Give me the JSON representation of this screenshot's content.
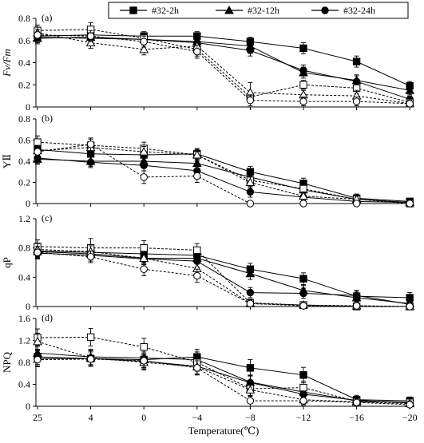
{
  "chart_data": {
    "type": "line",
    "x": [
      "25",
      "4",
      "0",
      "−4",
      "−8",
      "−12",
      "−16",
      "−20"
    ],
    "xlabel": "Temperature(℃)",
    "legend": {
      "placement": "top",
      "entries": [
        {
          "name": "#32-2h",
          "marker": "square"
        },
        {
          "name": "#32-12h",
          "marker": "triangle"
        },
        {
          "name": "#32-24h",
          "marker": "circle"
        }
      ]
    },
    "line_styles": {
      "filled": "solid",
      "open": "dashed"
    },
    "panels": [
      {
        "label": "(a)",
        "ylabel": "Fv/Fm",
        "ylim": [
          0,
          0.8
        ],
        "yticks": [
          "0",
          "0.2",
          "0.4",
          "0.6",
          "0.8"
        ],
        "series": [
          {
            "marker": "square",
            "fill": "filled",
            "values": [
              0.64,
              0.65,
              0.64,
              0.64,
              0.59,
              0.53,
              0.41,
              0.19
            ],
            "errors": [
              0.05,
              0.05,
              0.04,
              0.04,
              0.04,
              0.05,
              0.05,
              0.04
            ]
          },
          {
            "marker": "triangle",
            "fill": "filled",
            "values": [
              0.62,
              0.63,
              0.61,
              0.59,
              0.55,
              0.31,
              0.24,
              0.15
            ],
            "errors": [
              0.05,
              0.05,
              0.05,
              0.04,
              0.05,
              0.05,
              0.05,
              0.04
            ]
          },
          {
            "marker": "circle",
            "fill": "filled",
            "values": [
              0.63,
              0.62,
              0.61,
              0.58,
              0.51,
              0.33,
              0.23,
              0.07
            ],
            "errors": [
              0.05,
              0.05,
              0.04,
              0.05,
              0.05,
              0.05,
              0.05,
              0.03
            ]
          },
          {
            "marker": "square",
            "fill": "open",
            "values": [
              0.69,
              0.7,
              0.62,
              0.52,
              0.09,
              0.2,
              0.17,
              0.04
            ],
            "errors": [
              0.05,
              0.06,
              0.05,
              0.06,
              0.04,
              0.04,
              0.05,
              0.03
            ]
          },
          {
            "marker": "triangle",
            "fill": "open",
            "values": [
              0.67,
              0.58,
              0.52,
              0.55,
              0.13,
              0.11,
              0.1,
              0.03
            ],
            "errors": [
              0.05,
              0.05,
              0.05,
              0.05,
              0.09,
              0.04,
              0.05,
              0.03
            ]
          },
          {
            "marker": "circle",
            "fill": "open",
            "values": [
              0.65,
              0.64,
              0.59,
              0.5,
              0.06,
              0.05,
              0.05,
              0.03
            ],
            "errors": [
              0.05,
              0.05,
              0.05,
              0.06,
              0.05,
              0.04,
              0.04,
              0.02
            ]
          }
        ]
      },
      {
        "label": "(b)",
        "ylabel": "YⅡ",
        "ylim": [
          0,
          0.8
        ],
        "yticks": [
          "0",
          "0.2",
          "0.4",
          "0.6",
          "0.8"
        ],
        "series": [
          {
            "marker": "square",
            "fill": "filled",
            "values": [
              0.51,
              0.47,
              0.46,
              0.47,
              0.3,
              0.19,
              0.05,
              0.02
            ],
            "errors": [
              0.05,
              0.06,
              0.05,
              0.05,
              0.05,
              0.05,
              0.04,
              0.03
            ]
          },
          {
            "marker": "triangle",
            "fill": "filled",
            "values": [
              0.42,
              0.4,
              0.4,
              0.38,
              0.25,
              0.13,
              0.04,
              0.01
            ],
            "errors": [
              0.05,
              0.05,
              0.05,
              0.05,
              0.05,
              0.04,
              0.03,
              0.02
            ]
          },
          {
            "marker": "circle",
            "fill": "filled",
            "values": [
              0.43,
              0.39,
              0.36,
              0.31,
              0.11,
              0.06,
              0.02,
              0.01
            ],
            "errors": [
              0.05,
              0.05,
              0.05,
              0.05,
              0.05,
              0.04,
              0.02,
              0.01
            ]
          },
          {
            "marker": "square",
            "fill": "open",
            "values": [
              0.58,
              0.55,
              0.52,
              0.46,
              0.22,
              0.14,
              0.04,
              0.0
            ],
            "errors": [
              0.06,
              0.06,
              0.06,
              0.06,
              0.05,
              0.04,
              0.03,
              0.02
            ]
          },
          {
            "marker": "triangle",
            "fill": "open",
            "values": [
              0.5,
              0.53,
              0.49,
              0.46,
              0.2,
              0.07,
              0.04,
              0.01
            ],
            "errors": [
              0.05,
              0.05,
              0.05,
              0.05,
              0.05,
              0.04,
              0.03,
              0.02
            ]
          },
          {
            "marker": "circle",
            "fill": "open",
            "values": [
              0.49,
              0.56,
              0.25,
              0.26,
              0.0,
              0.0,
              0.0,
              0.0
            ],
            "errors": [
              0.05,
              0.06,
              0.06,
              0.06,
              0.02,
              0.02,
              0.02,
              0.01
            ]
          }
        ]
      },
      {
        "label": "(c)",
        "ylabel": "qP",
        "ylim": [
          0,
          1.2
        ],
        "yticks": [
          "0",
          "0.4",
          "0.8",
          "1.2"
        ],
        "series": [
          {
            "marker": "square",
            "fill": "filled",
            "values": [
              0.76,
              0.74,
              0.72,
              0.7,
              0.51,
              0.38,
              0.14,
              0.12
            ],
            "errors": [
              0.08,
              0.08,
              0.08,
              0.08,
              0.08,
              0.08,
              0.07,
              0.07
            ]
          },
          {
            "marker": "triangle",
            "fill": "filled",
            "values": [
              0.75,
              0.72,
              0.66,
              0.66,
              0.45,
              0.22,
              0.12,
              0.04
            ],
            "errors": [
              0.08,
              0.08,
              0.08,
              0.08,
              0.08,
              0.07,
              0.06,
              0.04
            ]
          },
          {
            "marker": "circle",
            "fill": "filled",
            "values": [
              0.73,
              0.7,
              0.65,
              0.62,
              0.19,
              0.18,
              0.15,
              0.03
            ],
            "errors": [
              0.08,
              0.08,
              0.08,
              0.08,
              0.07,
              0.07,
              0.07,
              0.04
            ]
          },
          {
            "marker": "square",
            "fill": "open",
            "values": [
              0.82,
              0.8,
              0.8,
              0.77,
              0.05,
              0.02,
              0.0,
              0.0
            ],
            "errors": [
              0.09,
              0.13,
              0.1,
              0.09,
              0.05,
              0.04,
              0.03,
              0.02
            ]
          },
          {
            "marker": "triangle",
            "fill": "open",
            "values": [
              0.78,
              0.75,
              0.66,
              0.52,
              0.04,
              0.02,
              0.01,
              0.0
            ],
            "errors": [
              0.08,
              0.08,
              0.08,
              0.08,
              0.05,
              0.03,
              0.03,
              0.02
            ]
          },
          {
            "marker": "circle",
            "fill": "open",
            "values": [
              0.74,
              0.68,
              0.51,
              0.42,
              0.04,
              0.01,
              0.01,
              0.0
            ],
            "errors": [
              0.08,
              0.08,
              0.09,
              0.09,
              0.04,
              0.03,
              0.02,
              0.02
            ]
          }
        ]
      },
      {
        "label": "(d)",
        "ylabel": "NPQ",
        "ylim": [
          0,
          1.6
        ],
        "yticks": [
          "0",
          "0.4",
          "0.8",
          "1.2",
          "1.6"
        ],
        "series": [
          {
            "marker": "square",
            "fill": "filled",
            "values": [
              0.9,
              0.87,
              0.85,
              0.9,
              0.7,
              0.57,
              0.12,
              0.1
            ],
            "errors": [
              0.14,
              0.14,
              0.14,
              0.14,
              0.15,
              0.14,
              0.08,
              0.07
            ]
          },
          {
            "marker": "triangle",
            "fill": "filled",
            "values": [
              0.97,
              0.9,
              0.88,
              0.85,
              0.44,
              0.26,
              0.1,
              0.07
            ],
            "errors": [
              0.14,
              0.14,
              0.14,
              0.14,
              0.13,
              0.1,
              0.07,
              0.06
            ]
          },
          {
            "marker": "circle",
            "fill": "filled",
            "values": [
              0.87,
              0.87,
              0.82,
              0.73,
              0.43,
              0.22,
              0.11,
              0.06
            ],
            "errors": [
              0.14,
              0.14,
              0.14,
              0.14,
              0.13,
              0.1,
              0.07,
              0.05
            ]
          },
          {
            "marker": "square",
            "fill": "open",
            "values": [
              1.25,
              1.26,
              1.08,
              0.8,
              0.32,
              0.34,
              0.09,
              0.07
            ],
            "errors": [
              0.16,
              0.16,
              0.16,
              0.16,
              0.13,
              0.12,
              0.07,
              0.06
            ]
          },
          {
            "marker": "triangle",
            "fill": "open",
            "values": [
              1.18,
              0.88,
              0.8,
              0.72,
              0.3,
              0.12,
              0.08,
              0.05
            ],
            "errors": [
              0.15,
              0.14,
              0.14,
              0.14,
              0.12,
              0.08,
              0.06,
              0.05
            ]
          },
          {
            "marker": "circle",
            "fill": "open",
            "values": [
              0.85,
              0.86,
              0.83,
              0.7,
              0.1,
              0.1,
              0.07,
              0.03
            ],
            "errors": [
              0.13,
              0.13,
              0.13,
              0.13,
              0.1,
              0.08,
              0.06,
              0.04
            ]
          }
        ]
      }
    ]
  }
}
